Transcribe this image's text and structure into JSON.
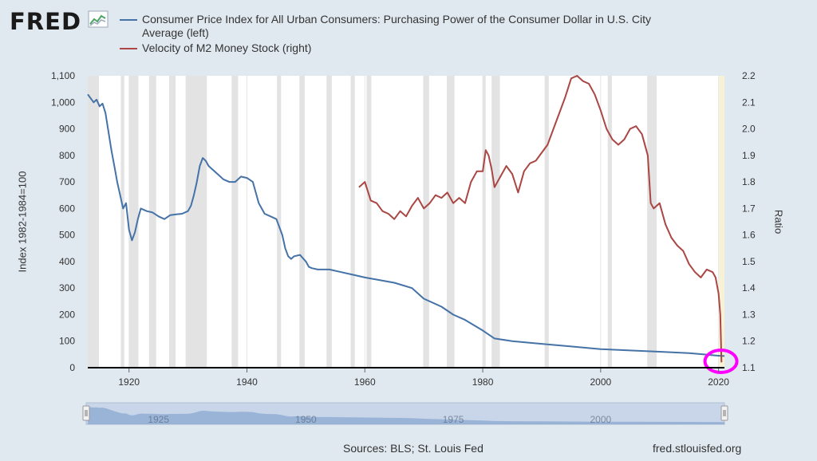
{
  "brand": {
    "logo_text": "FRED",
    "logo_icon": "fred-graph-icon"
  },
  "colors": {
    "cpi": "#4572a7",
    "velocity": "#aa4643",
    "recession": "#cccccc",
    "highlight": "#ff00ff",
    "background": "#e1e9f0"
  },
  "chart_data": {
    "type": "line",
    "x_type": "year",
    "xlim": [
      1913,
      2021
    ],
    "x_ticks": [
      "1920",
      "1940",
      "1960",
      "1980",
      "2000",
      "2020"
    ],
    "ylabel": "Index 1982-1984=100",
    "y_ticks": [
      "0",
      "100",
      "200",
      "300",
      "400",
      "500",
      "600",
      "700",
      "800",
      "900",
      "1,000",
      "1,100"
    ],
    "ylim": [
      0,
      1100
    ],
    "y2label": "Ratio",
    "y2_ticks": [
      "1.1",
      "1.2",
      "1.3",
      "1.4",
      "1.5",
      "1.6",
      "1.7",
      "1.8",
      "1.9",
      "2.0",
      "2.1",
      "2.2"
    ],
    "y2lim": [
      1.1,
      2.2
    ],
    "series": [
      {
        "name": "Consumer Price Index for All Urban Consumers: Purchasing Power of the Consumer Dollar in U.S. City Average (left)",
        "axis": "left",
        "x": [
          1913,
          1914,
          1914.5,
          1915,
          1915.5,
          1916,
          1917,
          1917.5,
          1918,
          1918.5,
          1919,
          1919.5,
          1920,
          1920.5,
          1921,
          1921.5,
          1922,
          1923,
          1924,
          1925,
          1926,
          1927,
          1928,
          1929,
          1930,
          1930.5,
          1931,
          1931.5,
          1932,
          1932.5,
          1933,
          1933.5,
          1934,
          1935,
          1936,
          1937,
          1938,
          1939,
          1940,
          1941,
          1941.5,
          1942,
          1942.5,
          1943,
          1944,
          1945,
          1946,
          1946.5,
          1947,
          1947.5,
          1948,
          1949,
          1950,
          1950.5,
          1951,
          1952,
          1954,
          1956,
          1958,
          1960,
          1965,
          1968,
          1970,
          1973,
          1975,
          1977,
          1980,
          1982,
          1985,
          1990,
          1995,
          2000,
          2005,
          2010,
          2015,
          2020,
          2021
        ],
        "y": [
          1030,
          1000,
          1010,
          985,
          995,
          960,
          820,
          760,
          700,
          650,
          600,
          620,
          520,
          480,
          510,
          560,
          600,
          590,
          585,
          570,
          560,
          575,
          578,
          580,
          590,
          610,
          650,
          700,
          760,
          790,
          780,
          760,
          750,
          730,
          710,
          700,
          700,
          720,
          715,
          700,
          660,
          620,
          600,
          580,
          570,
          560,
          500,
          450,
          420,
          410,
          420,
          425,
          400,
          380,
          375,
          370,
          370,
          360,
          350,
          340,
          320,
          300,
          260,
          230,
          200,
          180,
          140,
          110,
          100,
          90,
          80,
          70,
          65,
          60,
          55,
          45,
          44
        ],
        "values_unit": "Index 1982-1984=100"
      },
      {
        "name": "Velocity of M2 Money Stock (right)",
        "axis": "right",
        "x": [
          1959,
          1960,
          1961,
          1962,
          1963,
          1964,
          1965,
          1966,
          1967,
          1968,
          1969,
          1970,
          1971,
          1972,
          1973,
          1974,
          1975,
          1976,
          1977,
          1978,
          1979,
          1980,
          1980.5,
          1981,
          1981.5,
          1982,
          1983,
          1984,
          1985,
          1986,
          1987,
          1988,
          1989,
          1990,
          1991,
          1992,
          1993,
          1994,
          1995,
          1996,
          1997,
          1998,
          1999,
          2000,
          2001,
          2002,
          2003,
          2004,
          2005,
          2006,
          2007,
          2008,
          2008.5,
          2009,
          2010,
          2011,
          2012,
          2013,
          2014,
          2015,
          2016,
          2017,
          2018,
          2019,
          2019.5,
          2020,
          2020.3,
          2020.5
        ],
        "y": [
          1.78,
          1.8,
          1.73,
          1.72,
          1.69,
          1.68,
          1.66,
          1.69,
          1.67,
          1.71,
          1.74,
          1.7,
          1.72,
          1.75,
          1.74,
          1.76,
          1.72,
          1.74,
          1.72,
          1.8,
          1.84,
          1.84,
          1.92,
          1.9,
          1.85,
          1.78,
          1.82,
          1.86,
          1.83,
          1.76,
          1.84,
          1.87,
          1.88,
          1.91,
          1.94,
          2.0,
          2.06,
          2.12,
          2.19,
          2.2,
          2.18,
          2.17,
          2.13,
          2.07,
          2.0,
          1.96,
          1.94,
          1.96,
          2.0,
          2.01,
          1.98,
          1.9,
          1.72,
          1.7,
          1.72,
          1.64,
          1.59,
          1.56,
          1.54,
          1.49,
          1.46,
          1.44,
          1.47,
          1.46,
          1.44,
          1.38,
          1.3,
          1.12
        ],
        "values_unit": "Ratio"
      }
    ],
    "recessions": [
      [
        1913.0,
        1914.9
      ],
      [
        1918.6,
        1919.2
      ],
      [
        1920.0,
        1921.6
      ],
      [
        1923.4,
        1924.6
      ],
      [
        1926.8,
        1927.9
      ],
      [
        1929.6,
        1933.2
      ],
      [
        1937.4,
        1938.5
      ],
      [
        1945.1,
        1945.8
      ],
      [
        1948.9,
        1949.8
      ],
      [
        1953.5,
        1954.4
      ],
      [
        1957.6,
        1958.3
      ],
      [
        1960.3,
        1961.1
      ],
      [
        1969.9,
        1970.9
      ],
      [
        1973.9,
        1975.2
      ],
      [
        1980.0,
        1980.5
      ],
      [
        1981.5,
        1982.9
      ],
      [
        1990.5,
        1991.2
      ],
      [
        2001.2,
        2001.9
      ],
      [
        2007.9,
        2009.5
      ],
      [
        2020.1,
        2021.0
      ]
    ],
    "grid": "vertical",
    "navigator_labels": [
      "1925",
      "1950",
      "1975",
      "2000"
    ],
    "sources": "Sources: BLS; St. Louis Fed",
    "credit": "fred.stlouisfed.org"
  }
}
